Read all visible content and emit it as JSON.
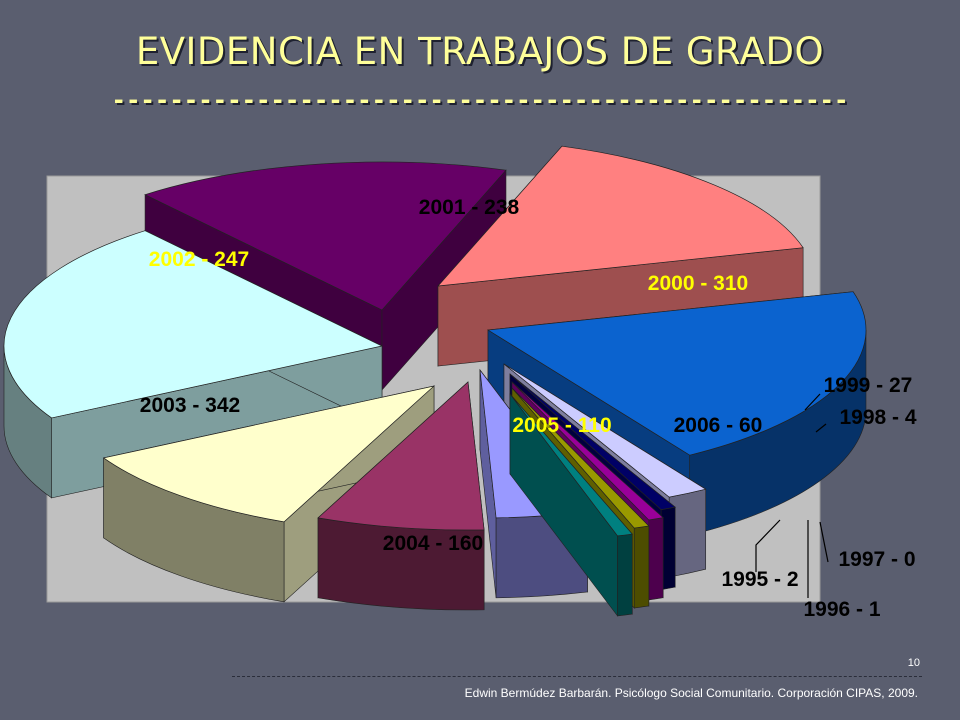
{
  "slide": {
    "title": "EVIDENCIA EN TRABAJOS DE GRADO",
    "title_rule": "---------------------------------------------------",
    "page_number": "10",
    "footer_credit": "Edwin Bermúdez Barbarán. Psicólogo Social Comunitario. Corporación CIPAS, 2009."
  },
  "chart_data": {
    "type": "pie",
    "style": "3d-exploded",
    "plot_background": "#c0c0c0",
    "legend": "none",
    "slices": [
      {
        "year": "2000",
        "value": 310,
        "label": "2000 - 310",
        "color": "#0b63cf",
        "label_color": "#ffff00"
      },
      {
        "year": "1999",
        "value": 27,
        "label": "1999 - 27",
        "color": "#ccccff",
        "label_color": "#000000"
      },
      {
        "year": "1998",
        "value": 4,
        "label": "1998 - 4",
        "color": "#000066",
        "label_color": "#000000"
      },
      {
        "year": "1997",
        "value": 0,
        "label": "1997 - 0",
        "color": "#990099",
        "label_color": "#000000"
      },
      {
        "year": "1996",
        "value": 1,
        "label": "1996 - 1",
        "color": "#999900",
        "label_color": "#000000"
      },
      {
        "year": "1995",
        "value": 2,
        "label": "1995 - 2",
        "color": "#008080",
        "label_color": "#000000"
      },
      {
        "year": "2006",
        "value": 60,
        "label": "2006 - 60",
        "color": "#9999ff",
        "label_color": "#000000"
      },
      {
        "year": "2005",
        "value": 110,
        "label": "2005 - 110",
        "color": "#993366",
        "label_color": "#ffff00"
      },
      {
        "year": "2004",
        "value": 160,
        "label": "2004 - 160",
        "color": "#ffffcc",
        "label_color": "#000000"
      },
      {
        "year": "2003",
        "value": 342,
        "label": "2003 - 342",
        "color": "#ccffff",
        "label_color": "#000000"
      },
      {
        "year": "2002",
        "value": 247,
        "label": "2002 - 247",
        "color": "#660066",
        "label_color": "#ffff00"
      },
      {
        "year": "2001",
        "value": 238,
        "label": "2001 - 238",
        "color": "#ff8080",
        "label_color": "#000000"
      }
    ]
  }
}
